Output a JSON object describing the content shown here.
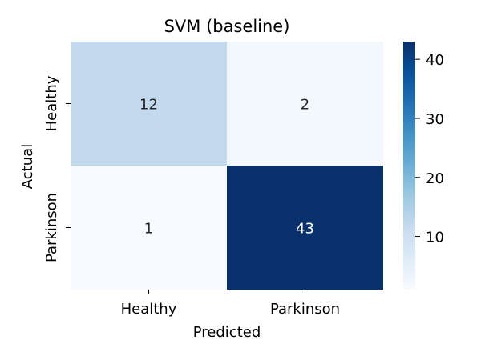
{
  "chart_data": {
    "type": "heatmap",
    "title": "SVM (baseline)",
    "xlabel": "Predicted",
    "ylabel": "Actual",
    "x_categories": [
      "Healthy",
      "Parkinson"
    ],
    "y_categories": [
      "Healthy",
      "Parkinson"
    ],
    "values": [
      [
        12,
        2
      ],
      [
        1,
        43
      ]
    ],
    "colormap": "Blues",
    "colorbar": {
      "ticks": [
        "10",
        "20",
        "30",
        "40"
      ],
      "tick_values": [
        10,
        20,
        30,
        40
      ],
      "range": [
        1,
        43
      ]
    },
    "grid": false,
    "legend": "colorbar-right"
  },
  "colors": {
    "scale_low": "#f7fbff",
    "scale_high": "#08306b",
    "text_dark": "#262626",
    "text_light": "#ffffff",
    "axis": "#000000"
  }
}
